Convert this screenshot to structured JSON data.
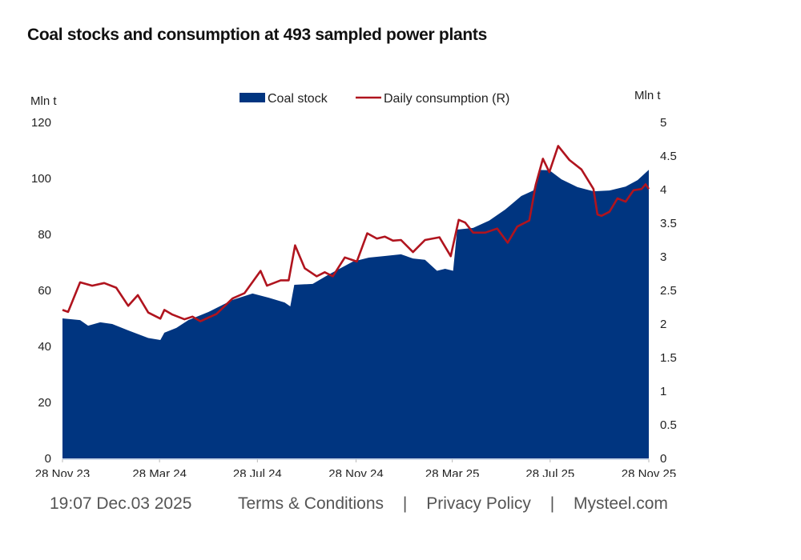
{
  "chart_data": {
    "type": "area+line",
    "title": "Coal stocks and consumption at 493 sampled power plants",
    "ylabel_left": "Mln t",
    "ylabel_right": "Mln t",
    "ylim_left": [
      0,
      120
    ],
    "ylim_right": [
      0,
      5
    ],
    "yticks_left": [
      "0",
      "20",
      "40",
      "60",
      "80",
      "100",
      "120"
    ],
    "yticks_right": [
      "0",
      "0.5",
      "1",
      "1.5",
      "2",
      "2.5",
      "3",
      "3.5",
      "4",
      "4.5",
      "5"
    ],
    "xlim": [
      "2023-11-28",
      "2025-11-28"
    ],
    "xticks": [
      {
        "date": "2023-11-28",
        "label": "28 Nov 23"
      },
      {
        "date": "2024-03-28",
        "label": "28 Mar 24"
      },
      {
        "date": "2024-07-28",
        "label": "28 Jul 24"
      },
      {
        "date": "2024-11-28",
        "label": "28 Nov 24"
      },
      {
        "date": "2025-03-28",
        "label": "28 Mar 25"
      },
      {
        "date": "2025-07-28",
        "label": "28 Jul 25"
      },
      {
        "date": "2025-11-28",
        "label": "28 Nov 25"
      }
    ],
    "grid": false,
    "legend": "top-center",
    "series": [
      {
        "name": "Coal stock",
        "type": "area",
        "axis": "left",
        "color": "#003580",
        "x": [
          "2023-11-28",
          "2023-12-20",
          "2023-12-30",
          "2024-01-14",
          "2024-01-29",
          "2024-02-18",
          "2024-03-14",
          "2024-03-29",
          "2024-04-03",
          "2024-04-18",
          "2024-05-03",
          "2024-05-28",
          "2024-06-27",
          "2024-07-22",
          "2024-08-11",
          "2024-08-31",
          "2024-09-07",
          "2024-09-12",
          "2024-10-05",
          "2024-10-25",
          "2024-11-24",
          "2024-12-14",
          "2025-01-03",
          "2025-01-23",
          "2025-02-07",
          "2025-02-22",
          "2025-03-09",
          "2025-03-19",
          "2025-03-29",
          "2025-04-03",
          "2025-04-23",
          "2025-05-13",
          "2025-06-02",
          "2025-06-22",
          "2025-07-07",
          "2025-07-14",
          "2025-07-27",
          "2025-08-11",
          "2025-08-31",
          "2025-09-20",
          "2025-10-10",
          "2025-10-30",
          "2025-11-14",
          "2025-11-28"
        ],
        "y": [
          50,
          49.4,
          47.4,
          48.6,
          48,
          45.7,
          43,
          42.3,
          44.9,
          46.6,
          49.4,
          52.3,
          56.6,
          58.9,
          57.4,
          55.7,
          54.3,
          62,
          62.3,
          65.7,
          70.3,
          71.7,
          72.3,
          72.9,
          71.4,
          70.9,
          67,
          67.7,
          67,
          81.7,
          82.3,
          84.9,
          88.9,
          93.7,
          95.7,
          103,
          102.9,
          99.7,
          96.9,
          95.4,
          95.7,
          97.1,
          99.4,
          103.1
        ]
      },
      {
        "name": "Daily consumption (R)",
        "type": "line",
        "axis": "right",
        "color": "#b0141e",
        "x": [
          "2023-11-28",
          "2023-12-05",
          "2023-12-20",
          "2024-01-04",
          "2024-01-19",
          "2024-02-03",
          "2024-02-18",
          "2024-03-01",
          "2024-03-14",
          "2024-03-29",
          "2024-04-03",
          "2024-04-13",
          "2024-04-28",
          "2024-05-08",
          "2024-05-18",
          "2024-06-07",
          "2024-06-27",
          "2024-07-12",
          "2024-08-01",
          "2024-08-09",
          "2024-08-26",
          "2024-09-05",
          "2024-09-13",
          "2024-09-25",
          "2024-10-10",
          "2024-10-20",
          "2024-10-30",
          "2024-11-14",
          "2024-11-29",
          "2024-12-12",
          "2024-12-24",
          "2025-01-03",
          "2025-01-13",
          "2025-01-23",
          "2025-02-07",
          "2025-02-22",
          "2025-03-12",
          "2025-03-26",
          "2025-04-05",
          "2025-04-13",
          "2025-04-23",
          "2025-05-08",
          "2025-05-23",
          "2025-06-05",
          "2025-06-17",
          "2025-07-02",
          "2025-07-10",
          "2025-07-19",
          "2025-07-27",
          "2025-08-07",
          "2025-08-21",
          "2025-09-05",
          "2025-09-20",
          "2025-09-25",
          "2025-09-30",
          "2025-10-10",
          "2025-10-20",
          "2025-10-30",
          "2025-11-09",
          "2025-11-19",
          "2025-11-24",
          "2025-11-28"
        ],
        "y": [
          2.21,
          2.18,
          2.62,
          2.57,
          2.61,
          2.54,
          2.27,
          2.43,
          2.17,
          2.08,
          2.21,
          2.14,
          2.07,
          2.11,
          2.04,
          2.15,
          2.38,
          2.46,
          2.79,
          2.57,
          2.65,
          2.65,
          3.17,
          2.83,
          2.71,
          2.77,
          2.71,
          2.99,
          2.93,
          3.35,
          3.27,
          3.3,
          3.24,
          3.25,
          3.07,
          3.25,
          3.29,
          3.01,
          3.55,
          3.51,
          3.36,
          3.36,
          3.42,
          3.21,
          3.45,
          3.54,
          4.07,
          4.46,
          4.26,
          4.65,
          4.44,
          4.3,
          4.01,
          3.63,
          3.61,
          3.67,
          3.87,
          3.82,
          3.99,
          4.01,
          4.08,
          4.01
        ]
      }
    ]
  },
  "footer": {
    "timestamp": "19:07 Dec.03 2025",
    "terms": "Terms & Conditions",
    "privacy": "Privacy Policy",
    "site": "Mysteel.com",
    "separator": "|"
  }
}
